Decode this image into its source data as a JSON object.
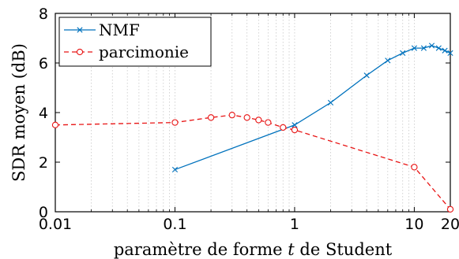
{
  "chart_data": {
    "type": "line",
    "xscale": "log",
    "xlim": [
      0.01,
      20
    ],
    "ylim": [
      0,
      8
    ],
    "xticks": [
      0.01,
      0.1,
      1,
      10,
      20
    ],
    "xtick_labels": [
      "0.01",
      "0.1",
      "1",
      "10",
      "20"
    ],
    "yticks": [
      0,
      2,
      4,
      6,
      8
    ],
    "ytick_labels": [
      "0",
      "2",
      "4",
      "6",
      "8"
    ],
    "xlabel": "paramètre de forme t de Student",
    "xlabel_parts": {
      "before": "paramètre de forme ",
      "var": "t",
      "after": " de Student"
    },
    "ylabel": "SDR moyen (dB)",
    "grid": "dotted vertical minor lines",
    "legend_position": "top-left",
    "series": [
      {
        "name": "NMF",
        "color": "#0072bd",
        "line_style": "solid",
        "marker": "x",
        "x": [
          0.1,
          1,
          2,
          4,
          6,
          8,
          10,
          12,
          14,
          16,
          18,
          20
        ],
        "y": [
          1.7,
          3.5,
          4.4,
          5.5,
          6.1,
          6.4,
          6.6,
          6.6,
          6.7,
          6.6,
          6.5,
          6.4
        ]
      },
      {
        "name": "parcimonie",
        "color": "#e81414",
        "line_style": "dashed",
        "marker": "circle",
        "x": [
          0.01,
          0.1,
          0.2,
          0.3,
          0.4,
          0.5,
          0.6,
          0.8,
          1,
          10,
          20
        ],
        "y": [
          3.5,
          3.6,
          3.8,
          3.9,
          3.8,
          3.7,
          3.6,
          3.4,
          3.3,
          1.8,
          0.1
        ]
      }
    ]
  }
}
